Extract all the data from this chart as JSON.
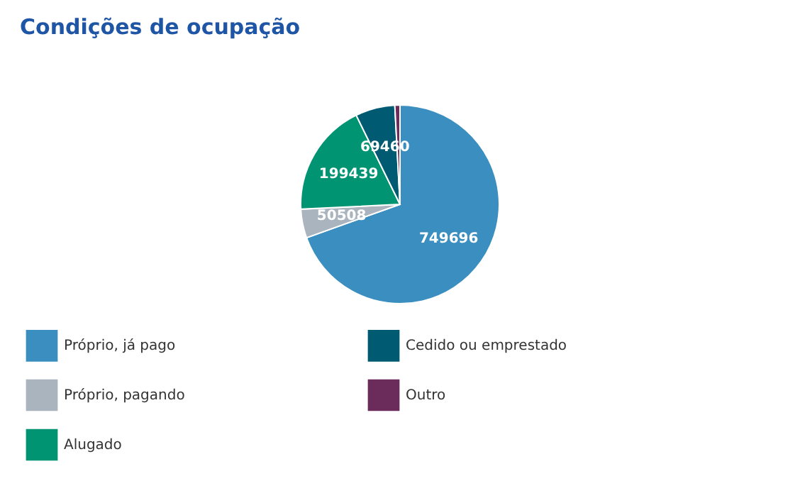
{
  "chart_data": {
    "type": "pie",
    "title": "Condições de ocupação",
    "categories": [
      "Próprio, já pago",
      "Próprio, pagando",
      "Alugado",
      "Cedido ou emprestado",
      "Outro"
    ],
    "values": [
      749696,
      50508,
      199439,
      69460,
      9000
    ],
    "value_labels": [
      "749696",
      "50508",
      "199439",
      "69460",
      null
    ],
    "colors": [
      "#3a8fc0",
      "#aab4bf",
      "#009473",
      "#005a72",
      "#6b2b5b"
    ],
    "legend": "bottom left"
  }
}
